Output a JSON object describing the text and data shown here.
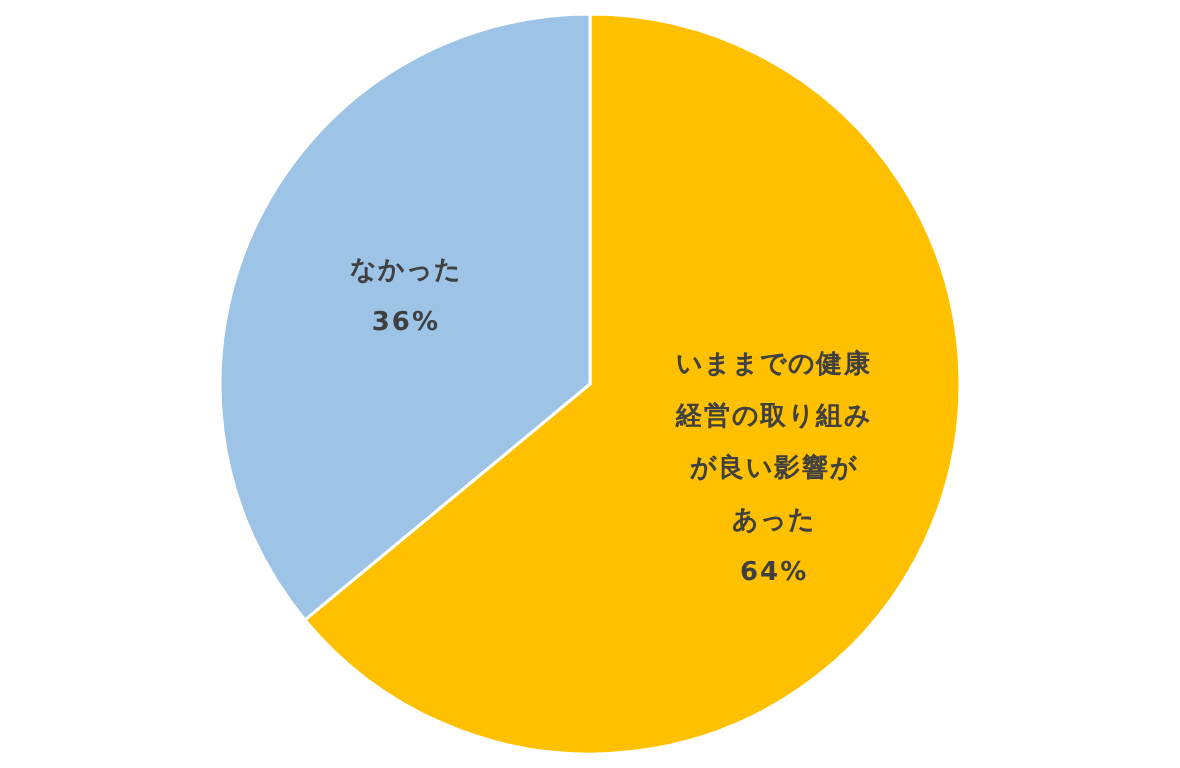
{
  "chart_data": {
    "type": "pie",
    "categories": [
      "いままでの健康経営の取り組みが良い影響があった",
      "なかった"
    ],
    "values": [
      64,
      36
    ],
    "colors": [
      "#ffc000",
      "#9dc3e6"
    ],
    "value_labels": [
      "64%",
      "36%"
    ],
    "legend": false
  }
}
